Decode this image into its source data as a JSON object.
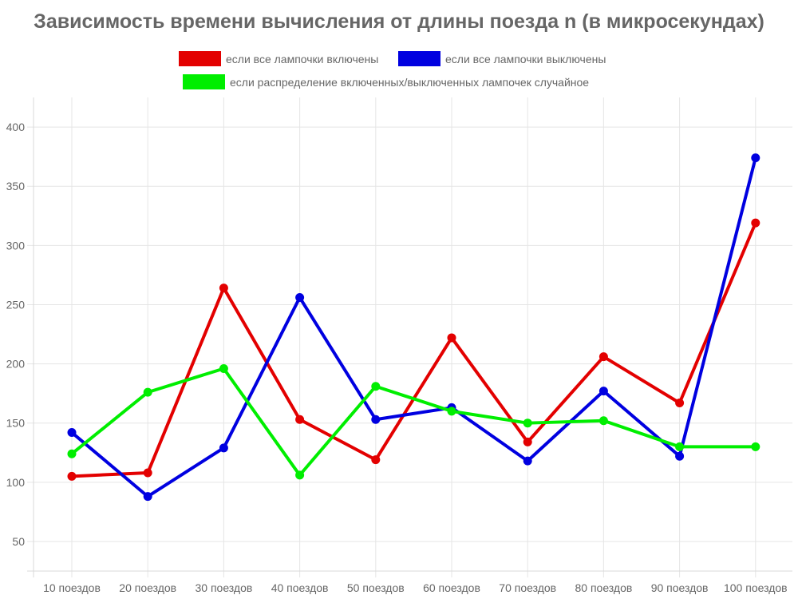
{
  "chart_data": {
    "type": "line",
    "title": "Зависимость времени вычисления от длины поезда n (в микросекундах)",
    "categories": [
      "10 поездов",
      "20 поездов",
      "30 поездов",
      "40 поездов",
      "50 поездов",
      "60 поездов",
      "70 поездов",
      "80 поездов",
      "90 поездов",
      "100 поездов"
    ],
    "y_ticks": [
      50,
      100,
      150,
      200,
      250,
      300,
      350,
      400
    ],
    "ylim": [
      25,
      425
    ],
    "grid": true,
    "legend_position": "top",
    "series": [
      {
        "name": "если все лампочки включены",
        "color": "#e30000",
        "values": [
          105,
          108,
          264,
          153,
          119,
          222,
          134,
          206,
          167,
          319
        ]
      },
      {
        "name": "если все лампочки выключены",
        "color": "#0000e0",
        "values": [
          142,
          88,
          129,
          256,
          153,
          163,
          118,
          177,
          122,
          374
        ]
      },
      {
        "name": "если распределение включенных/выключенных лампочек случайное",
        "color": "#00ee00",
        "values": [
          124,
          176,
          196,
          106,
          181,
          160,
          150,
          152,
          130,
          130
        ]
      }
    ]
  }
}
